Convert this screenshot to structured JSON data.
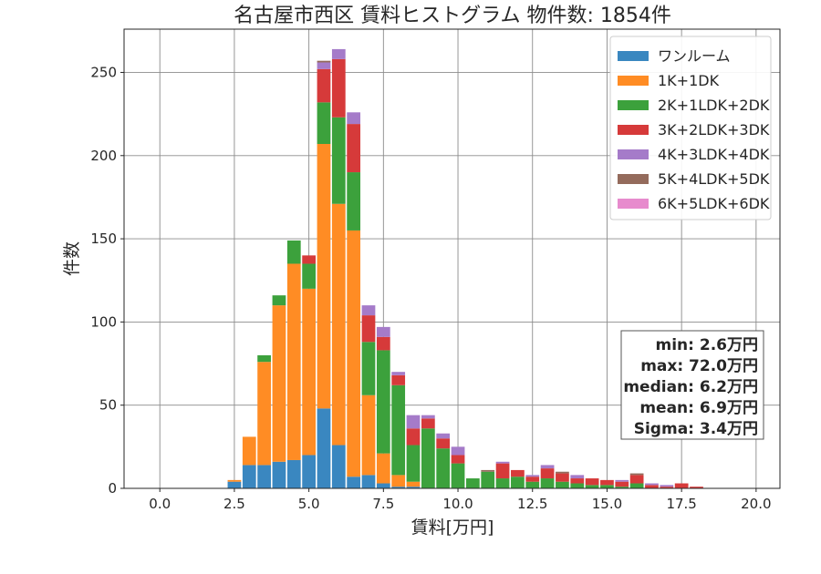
{
  "chart_data": {
    "type": "bar",
    "stacked": true,
    "title": "名古屋市西区 賃料ヒストグラム 物件数: 1854件",
    "xlabel": "賃料[万円]",
    "ylabel": "件数",
    "xlim": [
      -1.2,
      20.8
    ],
    "ylim": [
      0,
      276
    ],
    "xticks": [
      0,
      2.5,
      5,
      7.5,
      10,
      12.5,
      15,
      17.5,
      20
    ],
    "xtick_labels": [
      "0.0",
      "2.5",
      "5.0",
      "7.5",
      "10.0",
      "12.5",
      "15.0",
      "17.5",
      "20.0"
    ],
    "yticks": [
      0,
      50,
      100,
      150,
      200,
      250
    ],
    "ytick_labels": [
      "0",
      "50",
      "100",
      "150",
      "200",
      "250"
    ],
    "grid": true,
    "legend_position": "top-right",
    "bin_width": 0.5,
    "x": [
      2.5,
      3.0,
      3.5,
      4.0,
      4.5,
      5.0,
      5.5,
      6.0,
      6.5,
      7.0,
      7.5,
      8.0,
      8.5,
      9.0,
      9.5,
      10.0,
      10.5,
      11.0,
      11.5,
      12.0,
      12.5,
      13.0,
      13.5,
      14.0,
      14.5,
      15.0,
      15.5,
      16.0,
      16.5,
      17.0,
      17.5,
      18.0
    ],
    "series": [
      {
        "name": "ワンルーム",
        "color": "#3a87c0",
        "values": [
          4,
          14,
          14,
          16,
          17,
          20,
          48,
          26,
          7,
          8,
          3,
          1,
          1,
          0,
          0,
          0,
          0,
          0,
          0,
          0,
          0,
          0,
          0,
          0,
          0,
          0,
          0,
          0,
          0,
          0,
          0,
          0
        ]
      },
      {
        "name": "1K+1DK",
        "color": "#ff8c24",
        "values": [
          1,
          17,
          62,
          94,
          118,
          100,
          159,
          145,
          148,
          48,
          18,
          7,
          3,
          0,
          0,
          0,
          0,
          0,
          0,
          0,
          0,
          0,
          0,
          0,
          0,
          0,
          0,
          0,
          0,
          0,
          0,
          0
        ]
      },
      {
        "name": "2K+1LDK+2DK",
        "color": "#3ca13c",
        "values": [
          0,
          0,
          4,
          6,
          14,
          15,
          25,
          52,
          35,
          32,
          62,
          54,
          22,
          36,
          24,
          15,
          6,
          10,
          6,
          7,
          4,
          6,
          4,
          3,
          2,
          2,
          1,
          3,
          0,
          0,
          0,
          0
        ]
      },
      {
        "name": "3K+2LDK+3DK",
        "color": "#d63a3a",
        "values": [
          0,
          0,
          0,
          0,
          0,
          5,
          20,
          35,
          29,
          16,
          8,
          6,
          10,
          6,
          6,
          5,
          0,
          0,
          9,
          4,
          3,
          6,
          5,
          3,
          4,
          3,
          3,
          5,
          2,
          1,
          3,
          1
        ]
      },
      {
        "name": "4K+3LDK+4DK",
        "color": "#a57bc9",
        "values": [
          0,
          0,
          0,
          0,
          0,
          0,
          4,
          6,
          7,
          6,
          6,
          2,
          8,
          2,
          3,
          5,
          0,
          0,
          1,
          0,
          1,
          2,
          0,
          2,
          0,
          0,
          1,
          0,
          1,
          1,
          0,
          0
        ]
      },
      {
        "name": "5K+4LDK+5DK",
        "color": "#946b5c",
        "values": [
          0,
          0,
          0,
          0,
          0,
          0,
          1,
          0,
          0,
          0,
          0,
          0,
          0,
          0,
          0,
          0,
          0,
          1,
          0,
          0,
          0,
          0,
          1,
          0,
          0,
          0,
          0,
          1,
          0,
          0,
          0,
          0
        ]
      },
      {
        "name": "6K+5LDK+6DK",
        "color": "#e78bcd",
        "values": [
          0,
          0,
          0,
          0,
          0,
          0,
          0,
          0,
          0,
          0,
          0,
          0,
          0,
          0,
          0,
          0,
          0,
          0,
          0,
          0,
          0,
          0,
          0,
          0,
          0,
          0,
          0,
          0,
          0,
          0,
          0,
          0
        ]
      }
    ],
    "annotation": [
      "min: 2.6万円",
      "max: 72.0万円",
      "median: 6.2万円",
      "mean: 6.9万円",
      "Sigma: 3.4万円"
    ]
  }
}
